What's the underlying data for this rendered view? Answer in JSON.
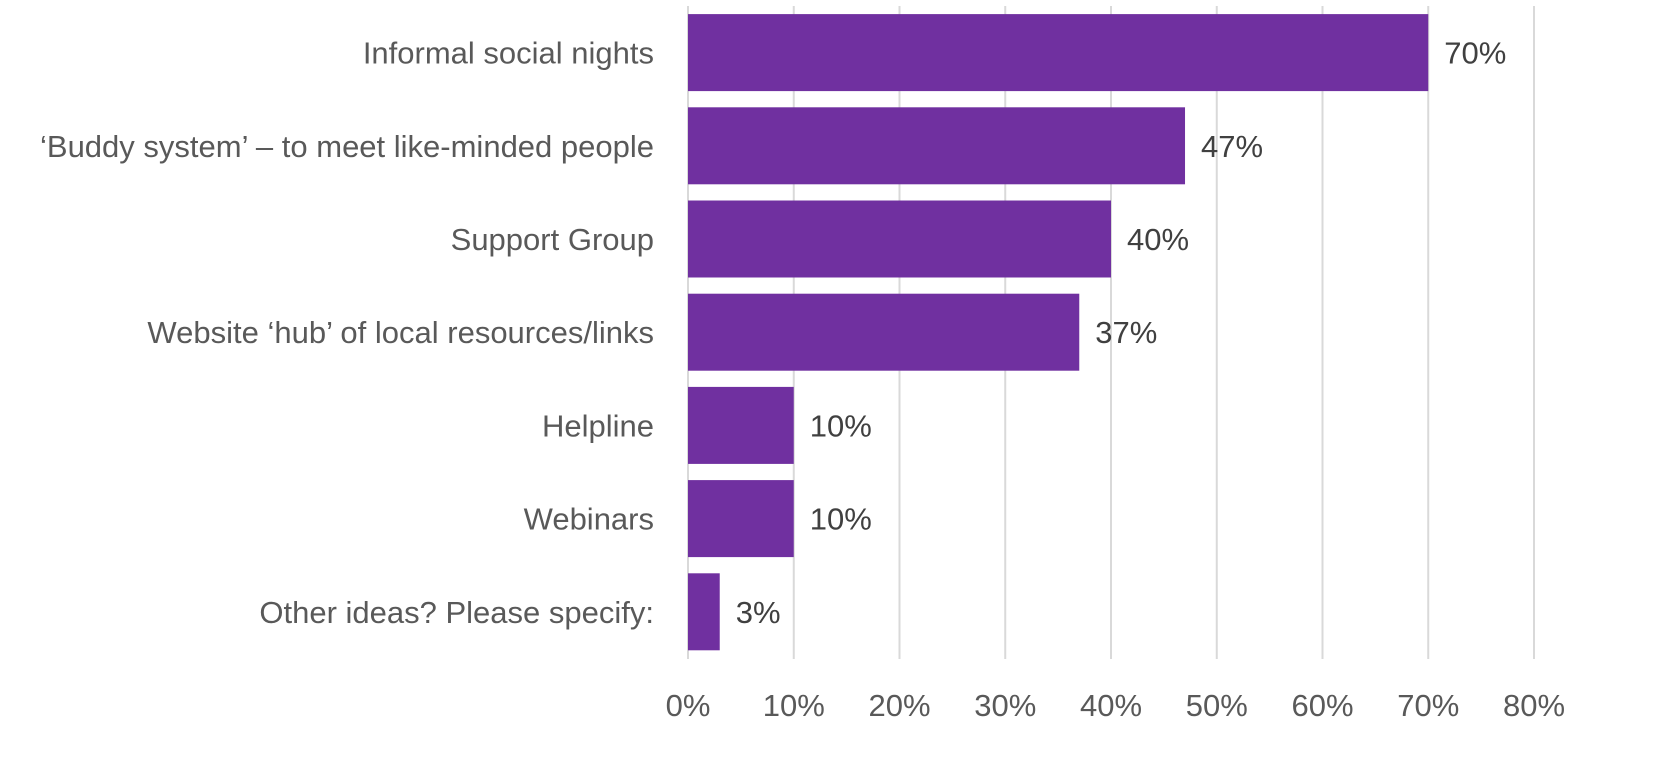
{
  "chart_data": {
    "type": "bar",
    "orientation": "horizontal",
    "categories": [
      "Informal social nights",
      "‘Buddy system’ – to meet like-minded people",
      "Support Group",
      "Website ‘hub’ of local resources/links",
      "Helpline",
      "Webinars",
      "Other ideas? Please specify:"
    ],
    "values": [
      70,
      47,
      40,
      37,
      10,
      10,
      3
    ],
    "value_labels": [
      "70%",
      "47%",
      "40%",
      "37%",
      "10%",
      "10%",
      "3%"
    ],
    "x_ticks": [
      0,
      10,
      20,
      30,
      40,
      50,
      60,
      70,
      80
    ],
    "x_tick_labels": [
      "0%",
      "10%",
      "20%",
      "30%",
      "40%",
      "50%",
      "60%",
      "70%",
      "80%"
    ],
    "xlim": [
      0,
      80
    ],
    "unit": "%",
    "title": "",
    "xlabel": "",
    "ylabel": "",
    "grid": true,
    "legend": "none",
    "bar_color": "#7030a0"
  }
}
